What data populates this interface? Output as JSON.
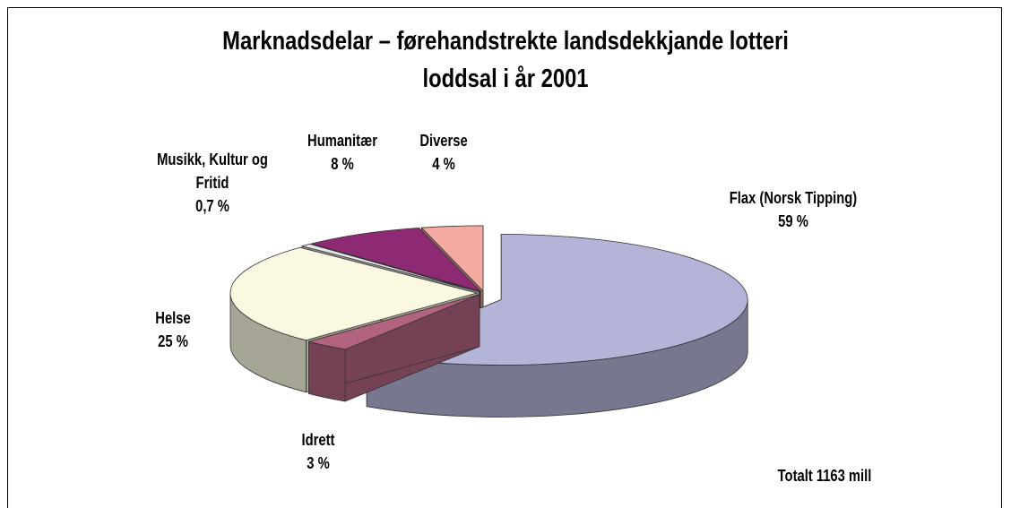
{
  "chart_data": {
    "type": "pie3d",
    "title": "Marknadsdelar – førehandstrekte landsdekkjande lotteri",
    "subtitle": "loddsal i år 2001",
    "categories": [
      "Flax (Norsk Tipping)",
      "Idrett",
      "Helse",
      "Musikk, Kultur og Fritid",
      "Humanitær",
      "Diverse"
    ],
    "values": [
      59,
      3,
      25,
      0.7,
      8,
      4
    ],
    "value_labels": [
      "59 %",
      "3 %",
      "25 %",
      "0,7 %",
      "8 %",
      "4 %"
    ],
    "colors": [
      "#b4b4d8",
      "#b2637f",
      "#fbf8e2",
      "#e6e6e6",
      "#8e2a73",
      "#f2aaa2"
    ],
    "annotation": "Totalt 1163 mill"
  }
}
